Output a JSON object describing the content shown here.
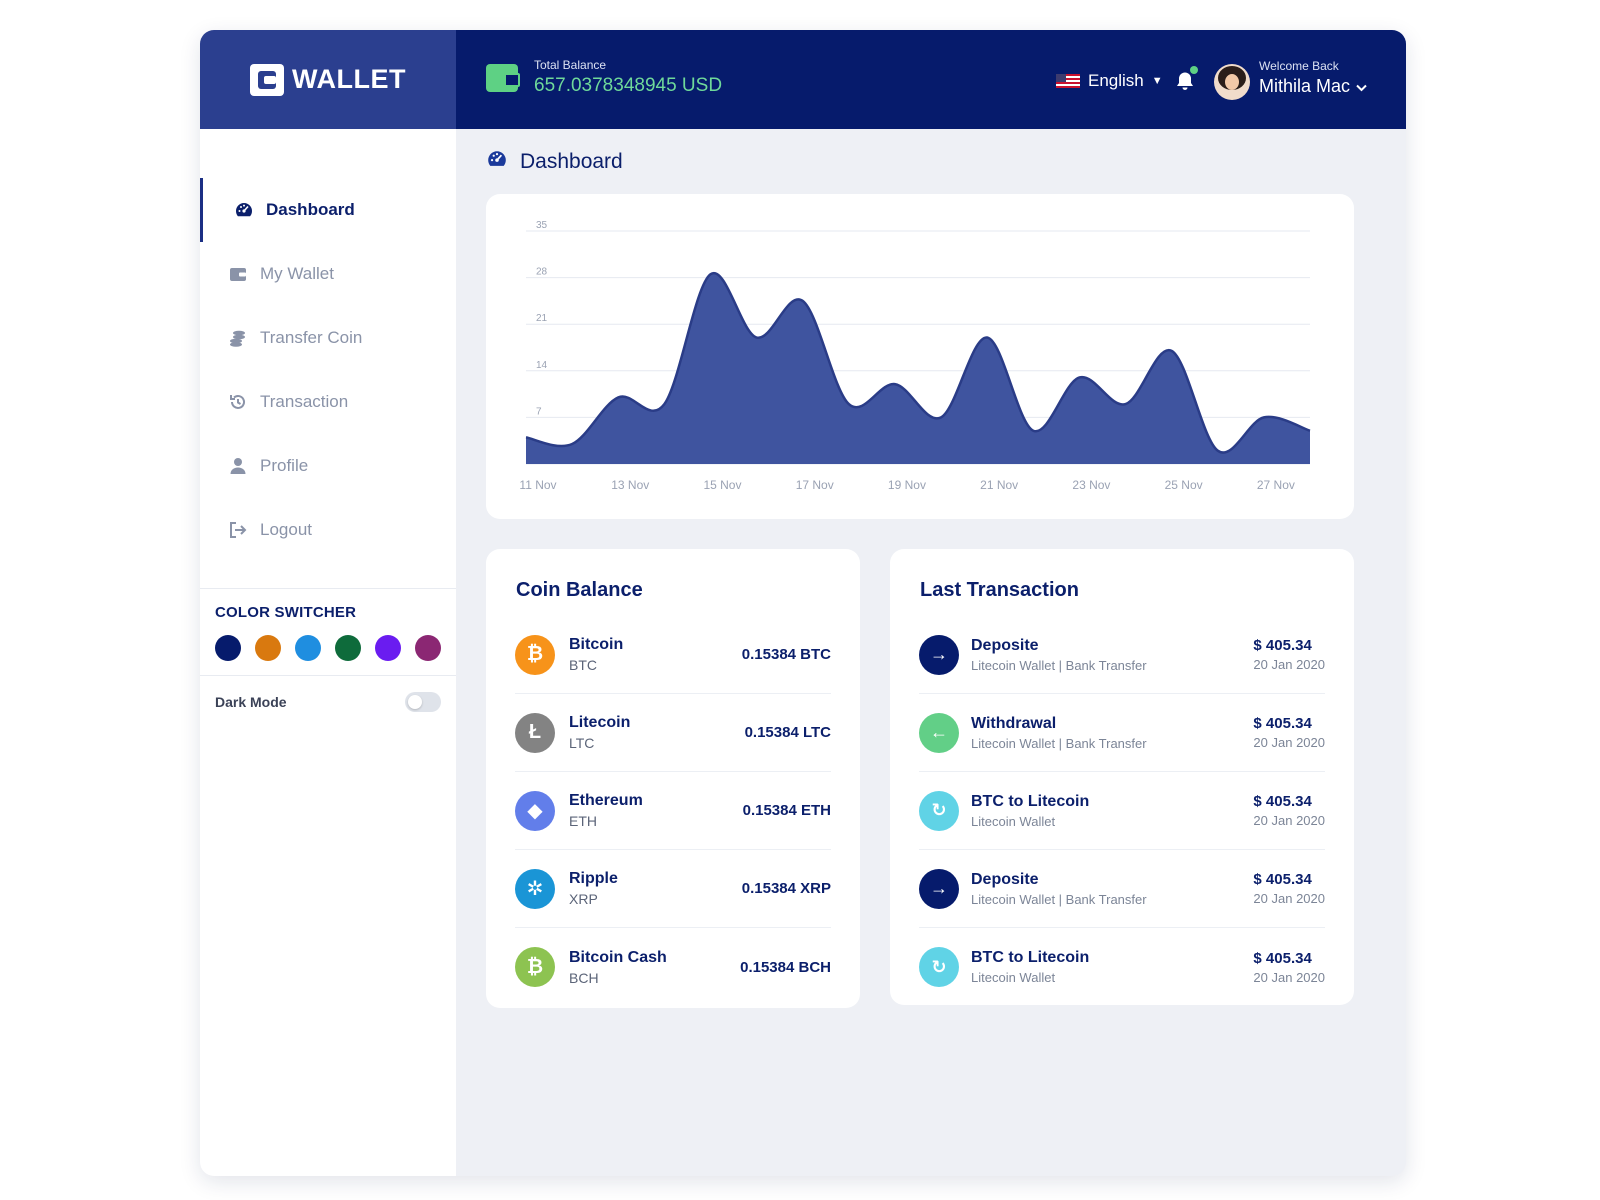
{
  "brand": {
    "name": "WALLET"
  },
  "header": {
    "balance_label": "Total Balance",
    "balance_value": "657.0378348945 USD",
    "language": "English",
    "welcome_label": "Welcome Back",
    "user_name": "Mithila Mac"
  },
  "sidebar": {
    "items": [
      {
        "label": "Dashboard",
        "icon": "gauge-icon"
      },
      {
        "label": "My Wallet",
        "icon": "wallet-icon"
      },
      {
        "label": "Transfer Coin",
        "icon": "coins-icon"
      },
      {
        "label": "Transaction",
        "icon": "history-icon"
      },
      {
        "label": "Profile",
        "icon": "user-icon"
      },
      {
        "label": "Logout",
        "icon": "logout-icon"
      }
    ],
    "color_switcher_title": "COLOR SWITCHER",
    "swatches": [
      "#061b6c",
      "#d9790f",
      "#1f8ee0",
      "#0e6b3b",
      "#6a1cf0",
      "#8b2773"
    ],
    "dark_mode_label": "Dark Mode"
  },
  "page": {
    "title": "Dashboard"
  },
  "chart_data": {
    "type": "area",
    "x": [
      "11 Nov",
      "12 Nov",
      "13 Nov",
      "14 Nov",
      "15 Nov",
      "16 Nov",
      "17 Nov",
      "18 Nov",
      "19 Nov",
      "20 Nov",
      "21 Nov",
      "22 Nov",
      "23 Nov",
      "24 Nov",
      "25 Nov",
      "26 Nov",
      "27 Nov",
      "28 Nov"
    ],
    "values": [
      4,
      3,
      10,
      9,
      28.5,
      19,
      24.5,
      9,
      12,
      7,
      19,
      5,
      13,
      9,
      17,
      2,
      7,
      5
    ],
    "tick_labels": [
      "11 Nov",
      "13 Nov",
      "15 Nov",
      "17 Nov",
      "19 Nov",
      "21 Nov",
      "23 Nov",
      "25 Nov",
      "27 Nov"
    ],
    "yticks": [
      0,
      7,
      14,
      21,
      28,
      35
    ],
    "ylim": [
      0,
      35
    ],
    "grid": true,
    "fill": "#3f549f",
    "stroke": "#2a3c87"
  },
  "coin_balance": {
    "title": "Coin Balance",
    "coins": [
      {
        "name": "Bitcoin",
        "symbol": "BTC",
        "amount": "0.15384 BTC",
        "color": "#f7931a",
        "glyph": "₿"
      },
      {
        "name": "Litecoin",
        "symbol": "LTC",
        "amount": "0.15384 LTC",
        "color": "#838383",
        "glyph": "Ł"
      },
      {
        "name": "Ethereum",
        "symbol": "ETH",
        "amount": "0.15384 ETH",
        "color": "#627eea",
        "glyph": "◆"
      },
      {
        "name": "Ripple",
        "symbol": "XRP",
        "amount": "0.15384 XRP",
        "color": "#1a95d6",
        "glyph": "✲"
      },
      {
        "name": "Bitcoin Cash",
        "symbol": "BCH",
        "amount": "0.15384 BCH",
        "color": "#8dc351",
        "glyph": "₿"
      }
    ]
  },
  "last_transaction": {
    "title": "Last Transaction",
    "items": [
      {
        "title": "Deposite",
        "sub": "Litecoin Wallet | Bank Transfer",
        "amount": "$ 405.34",
        "date": "20 Jan 2020",
        "color": "#061b6c",
        "glyph": "→",
        "icon": "arrow-right-icon"
      },
      {
        "title": "Withdrawal",
        "sub": "Litecoin Wallet | Bank Transfer",
        "amount": "$ 405.34",
        "date": "20 Jan 2020",
        "color": "#62cf87",
        "glyph": "←",
        "icon": "arrow-left-icon"
      },
      {
        "title": "BTC to Litecoin",
        "sub": "Litecoin Wallet",
        "amount": "$ 405.34",
        "date": "20 Jan 2020",
        "color": "#60d3e6",
        "glyph": "↻",
        "icon": "exchange-icon"
      },
      {
        "title": "Deposite",
        "sub": "Litecoin Wallet | Bank Transfer",
        "amount": "$ 405.34",
        "date": "20 Jan 2020",
        "color": "#061b6c",
        "glyph": "→",
        "icon": "arrow-right-icon"
      },
      {
        "title": "BTC to Litecoin",
        "sub": "Litecoin Wallet",
        "amount": "$ 405.34",
        "date": "20 Jan 2020",
        "color": "#60d3e6",
        "glyph": "↻",
        "icon": "exchange-icon"
      }
    ]
  }
}
